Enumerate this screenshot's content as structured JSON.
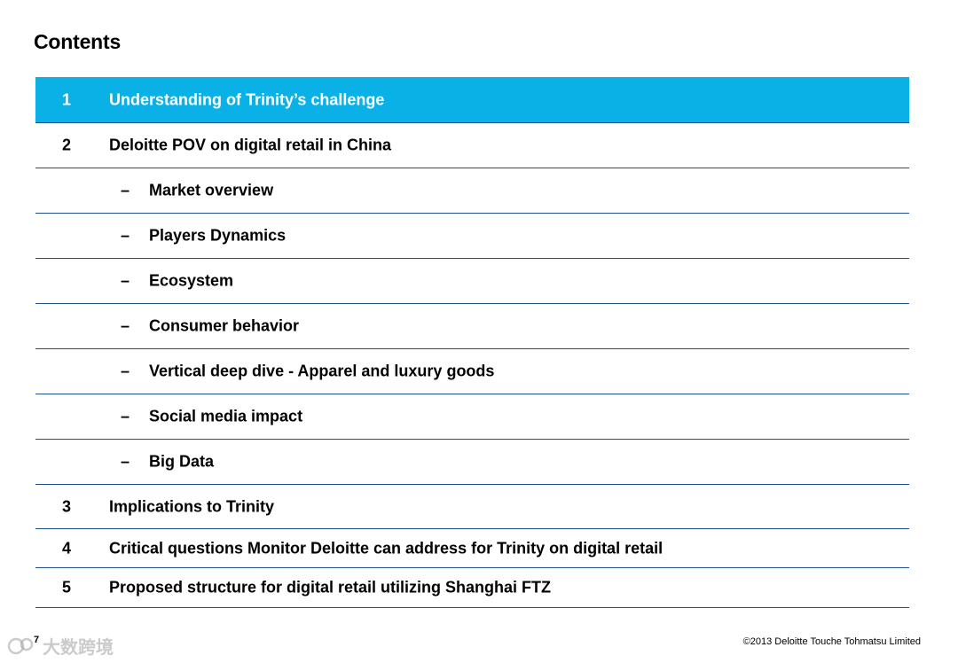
{
  "slide": {
    "title": "Contents",
    "page_number": "7",
    "copyright": "©2013 Deloitte Touche Tohmatsu Limited"
  },
  "watermark": {
    "text": "大数跨境",
    "icon": "logo-icon"
  },
  "toc": [
    {
      "number": "1",
      "label": "Understanding of Trinity’s challenge",
      "active": true
    },
    {
      "number": "2",
      "label": "Deloitte POV on digital retail in China"
    },
    {
      "dash": "–",
      "label": "Market overview"
    },
    {
      "dash": "–",
      "label": "Players Dynamics"
    },
    {
      "dash": "–",
      "label": "Ecosystem"
    },
    {
      "dash": "–",
      "label": "Consumer behavior"
    },
    {
      "dash": "–",
      "label": "Vertical deep dive - Apparel and luxury goods"
    },
    {
      "dash": "–",
      "label": "Social media impact"
    },
    {
      "dash": "–",
      "label": "Big Data"
    },
    {
      "number": "3",
      "label": "Implications to Trinity"
    },
    {
      "number": "4",
      "label": "Critical questions Monitor Deloitte can address for Trinity on digital retail"
    },
    {
      "number": "5",
      "label": "Proposed structure for digital retail utilizing Shanghai FTZ"
    }
  ],
  "colors": {
    "active_row": "#0ab1e6",
    "divider": "#1f4e8c"
  }
}
